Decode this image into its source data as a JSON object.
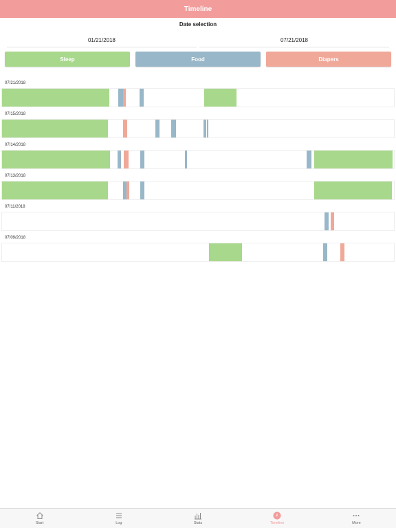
{
  "header": {
    "title": "Timeline"
  },
  "date_selection": {
    "title": "Date selection",
    "start": "01/21/2018",
    "end": "07/21/2018"
  },
  "filters": [
    {
      "label": "Sleep",
      "color": "#a8d88b"
    },
    {
      "label": "Food",
      "color": "#98b7c8"
    },
    {
      "label": "Diapers",
      "color": "#f0a898"
    }
  ],
  "days": [
    {
      "date": "07/21/2018",
      "events": [
        {
          "type": "sleep",
          "start": 0,
          "end": 27.4
        },
        {
          "type": "food",
          "start": 29.7,
          "end": 30.8
        },
        {
          "type": "diaper",
          "start": 30.8,
          "end": 31.5
        },
        {
          "type": "food",
          "start": 35.1,
          "end": 36.2
        },
        {
          "type": "sleep",
          "start": 51.6,
          "end": 59.9
        }
      ]
    },
    {
      "date": "07/15/2018",
      "events": [
        {
          "type": "sleep",
          "start": 0,
          "end": 27.1
        },
        {
          "type": "diaper",
          "start": 30.9,
          "end": 31.9
        },
        {
          "type": "food",
          "start": 39.1,
          "end": 40.2
        },
        {
          "type": "food",
          "start": 43.2,
          "end": 44.3
        },
        {
          "type": "food",
          "start": 51.4,
          "end": 52.1
        },
        {
          "type": "food",
          "start": 52.3,
          "end": 52.7
        }
      ]
    },
    {
      "date": "07/14/2018",
      "events": [
        {
          "type": "sleep",
          "start": 0,
          "end": 27.6
        },
        {
          "type": "food",
          "start": 29.4,
          "end": 30.4
        },
        {
          "type": "diaper",
          "start": 31.1,
          "end": 32.2
        },
        {
          "type": "food",
          "start": 35.3,
          "end": 36.4
        },
        {
          "type": "food",
          "start": 46.6,
          "end": 47.2
        },
        {
          "type": "food",
          "start": 77.8,
          "end": 78.9
        },
        {
          "type": "sleep",
          "start": 79.7,
          "end": 99.7
        }
      ]
    },
    {
      "date": "07/13/2018",
      "events": [
        {
          "type": "sleep",
          "start": 0,
          "end": 27.1
        },
        {
          "type": "food",
          "start": 30.9,
          "end": 31.8
        },
        {
          "type": "diaper",
          "start": 31.8,
          "end": 32.5
        },
        {
          "type": "food",
          "start": 35.3,
          "end": 36.4
        },
        {
          "type": "sleep",
          "start": 79.7,
          "end": 99.4
        }
      ]
    },
    {
      "date": "07/11/2018",
      "events": [
        {
          "type": "food",
          "start": 82.3,
          "end": 83.4
        },
        {
          "type": "diaper",
          "start": 83.9,
          "end": 84.8
        }
      ]
    },
    {
      "date": "07/09/2018",
      "events": [
        {
          "type": "sleep",
          "start": 52.8,
          "end": 61.2
        },
        {
          "type": "food",
          "start": 82.0,
          "end": 83.0
        },
        {
          "type": "diaper",
          "start": 86.3,
          "end": 87.3
        }
      ]
    }
  ],
  "colors": {
    "sleep": "#a8d88b",
    "food": "#98b7c8",
    "diaper": "#f0a898",
    "header": "#f29c9c"
  },
  "tabs": [
    {
      "label": "Start",
      "icon": "home-icon",
      "active": false
    },
    {
      "label": "Log",
      "icon": "list-icon",
      "active": false
    },
    {
      "label": "Stats",
      "icon": "chart-icon",
      "active": false
    },
    {
      "label": "Timeline",
      "icon": "clock-icon",
      "active": true
    },
    {
      "label": "More",
      "icon": "more-icon",
      "active": false
    }
  ]
}
